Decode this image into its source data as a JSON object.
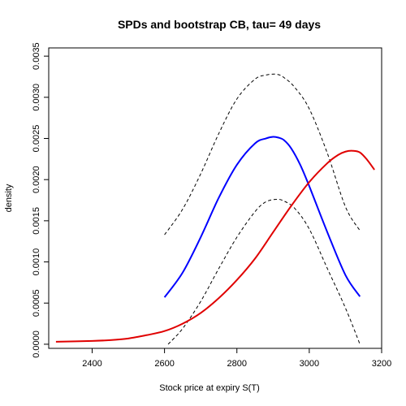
{
  "chart_data": {
    "type": "line",
    "title": "SPDs and bootstrap CB, tau= 49 days",
    "xlabel": "Stock price at expiry S(T)",
    "ylabel": "density",
    "xlim": [
      2280,
      3200
    ],
    "ylim": [
      -5e-05,
      0.0036
    ],
    "xticks": [
      "2400",
      "2600",
      "2800",
      "3000",
      "3200"
    ],
    "yticks": [
      "0.0000",
      "0.0005",
      "0.0010",
      "0.0015",
      "0.0020",
      "0.0025",
      "0.0030",
      "0.0035"
    ],
    "series": [
      {
        "color": "#0000ff",
        "dash": "solid",
        "x": [
          2600,
          2650,
          2700,
          2750,
          2800,
          2850,
          2880,
          2900,
          2915,
          2930,
          2950,
          2975,
          3000,
          3050,
          3100,
          3140
        ],
        "y": [
          0.00057,
          0.00087,
          0.0013,
          0.00178,
          0.00218,
          0.00244,
          0.0025,
          0.00252,
          0.00251,
          0.00248,
          0.00238,
          0.00218,
          0.00192,
          0.00136,
          0.00084,
          0.00058
        ]
      },
      {
        "color": "#000000",
        "dash": "dashed",
        "x": [
          2600,
          2650,
          2700,
          2750,
          2800,
          2850,
          2880,
          2910,
          2930,
          2960,
          3000,
          3050,
          3100,
          3140
        ],
        "y": [
          0.00133,
          0.00164,
          0.00207,
          0.00256,
          0.00298,
          0.00322,
          0.00327,
          0.00328,
          0.00324,
          0.00312,
          0.00286,
          0.00232,
          0.00167,
          0.00138
        ]
      },
      {
        "color": "#000000",
        "dash": "dashed",
        "x": [
          2610,
          2650,
          2700,
          2750,
          2800,
          2850,
          2880,
          2910,
          2930,
          2960,
          3000,
          3050,
          3100,
          3140
        ],
        "y": [
          0.0,
          0.00019,
          0.00052,
          0.00092,
          0.0013,
          0.00161,
          0.00173,
          0.00176,
          0.00174,
          0.00165,
          0.0014,
          0.00092,
          0.00044,
          0.0
        ]
      },
      {
        "color": "#e00000",
        "dash": "solid",
        "x": [
          2300,
          2400,
          2450,
          2500,
          2550,
          2600,
          2650,
          2700,
          2750,
          2800,
          2850,
          2900,
          2950,
          3000,
          3050,
          3080,
          3100,
          3120,
          3140,
          3160,
          3180
        ],
        "y": [
          3e-05,
          4e-05,
          5e-05,
          7e-05,
          0.00011,
          0.00016,
          0.00025,
          0.00038,
          0.00056,
          0.00078,
          0.00104,
          0.00136,
          0.00168,
          0.00197,
          0.0022,
          0.0023,
          0.00234,
          0.00235,
          0.00233,
          0.00224,
          0.00212
        ]
      }
    ]
  }
}
